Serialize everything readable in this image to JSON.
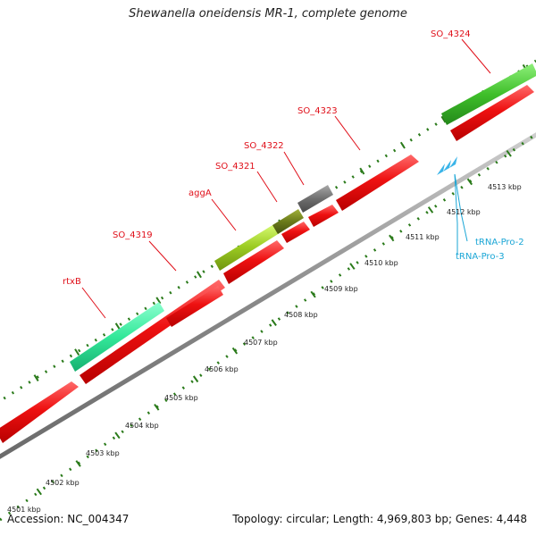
{
  "title": "Shewanella oneidensis MR-1, complete genome",
  "footer": {
    "accession": "Accession: NC_004347",
    "summary": "Topology: circular; Length: 4,969,803 bp; Genes: 4,448"
  },
  "colors": {
    "cds": "#ee1111",
    "backbone": "#888888",
    "tick": "#2a7a1a",
    "gene_label": "#e0101a",
    "trna": "#1aa6d6"
  },
  "kbp_labels": [
    "4501 kbp",
    "4502 kbp",
    "4503 kbp",
    "4504 kbp",
    "4505 kbp",
    "4506 kbp",
    "4507 kbp",
    "4508 kbp",
    "4509 kbp",
    "4510 kbp",
    "4511 kbp",
    "4512 kbp",
    "4513 kbp"
  ],
  "gene_labels": [
    "rtxB",
    "SO_4319",
    "aggA",
    "SO_4321",
    "SO_4322",
    "SO_4323",
    "SO_4324"
  ],
  "trna_labels": [
    "tRNA-Pro-2",
    "tRNA-Pro-3"
  ],
  "gene_bars": [
    {
      "name": "rtxB",
      "color": "#33e89a"
    },
    {
      "name": "aggA",
      "color": "#9ccc22"
    },
    {
      "name": "SO_4321",
      "color": "#6a7a1a"
    },
    {
      "name": "SO_4322",
      "color": "#6e6e6e"
    },
    {
      "name": "SO_4324",
      "color": "#3fbf2a"
    }
  ]
}
